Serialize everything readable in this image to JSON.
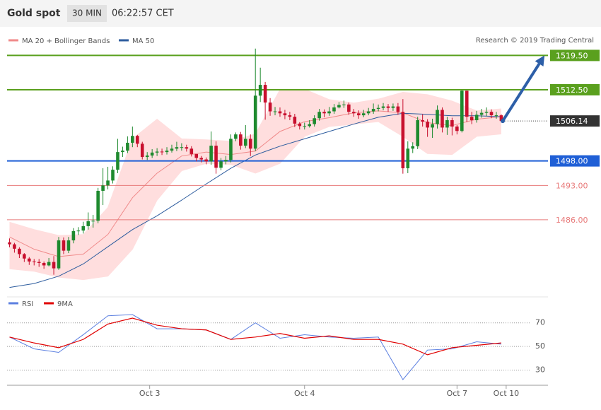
{
  "header": {
    "title": "Gold spot",
    "timeframe": "30 MIN",
    "time": "06:22:57 CET"
  },
  "chart_data": [
    {
      "type": "candlestick",
      "source": "Research © 2019 Trading Central",
      "up_color": "#1e8a2e",
      "down_color": "#c8102e",
      "open": [
        1481.4,
        1481.0,
        1480.1,
        1479.0,
        1478.1,
        1477.5,
        1477.4,
        1477.2,
        1476.7,
        1477.4,
        1476.1,
        1481.8,
        1479.7,
        1481.8,
        1483.7,
        1483.8,
        1484.7,
        1485.7,
        1485.8,
        1491.9,
        1493.0,
        1494.0,
        1496.2,
        1499.8,
        1500.1,
        1501.7,
        1503.1,
        1501.5,
        1498.8,
        1499.1,
        1499.7,
        1499.9,
        1499.8,
        1500.1,
        1500.5,
        1500.8,
        1500.8,
        1500.5,
        1499.4,
        1498.6,
        1498.3,
        1497.9,
        1501.1,
        1496.6,
        1497.9,
        1498.2,
        1502.5,
        1503.4,
        1501.1,
        1502.5,
        1500.5,
        1511.3,
        1513.5,
        1509.9,
        1508.1,
        1508.1,
        1507.7,
        1507.3,
        1507.0,
        1505.6,
        1505.1,
        1505.1,
        1505.5,
        1506.7,
        1508.0,
        1507.7,
        1508.1,
        1508.9,
        1509.4,
        1509.5,
        1508.0,
        1507.7,
        1507.3,
        1507.7,
        1508.1,
        1508.6,
        1508.8,
        1509.1,
        1508.8,
        1509.1,
        1508.0,
        1496.5,
        1500.5,
        1501.0,
        1506.3,
        1506.0,
        1504.8,
        1505.5,
        1508.4,
        1504.8,
        1506.3,
        1505.0,
        1504.1,
        1512.3,
        1507.0,
        1506.3,
        1507.4,
        1507.8,
        1508.0,
        1507.3,
        1507.3
      ],
      "high": [
        1482.2,
        1481.3,
        1480.4,
        1479.2,
        1478.4,
        1478.0,
        1478.0,
        1477.5,
        1478.2,
        1478.6,
        1482.5,
        1482.4,
        1482.5,
        1484.3,
        1484.5,
        1485.6,
        1487.5,
        1487.0,
        1492.5,
        1496.5,
        1496.8,
        1496.9,
        1502.5,
        1500.9,
        1503.0,
        1505.0,
        1503.3,
        1501.9,
        1499.8,
        1500.4,
        1500.6,
        1500.5,
        1500.8,
        1501.3,
        1501.9,
        1501.6,
        1501.3,
        1501.0,
        1499.3,
        1499.0,
        1498.7,
        1504.0,
        1502.0,
        1498.6,
        1499.0,
        1503.4,
        1503.8,
        1503.9,
        1505.3,
        1503.4,
        1520.9,
        1517.0,
        1514.1,
        1510.8,
        1509.0,
        1508.9,
        1508.4,
        1508.0,
        1507.6,
        1505.9,
        1505.8,
        1506.3,
        1507.3,
        1508.6,
        1508.5,
        1509.0,
        1509.6,
        1510.0,
        1510.3,
        1509.9,
        1508.6,
        1508.3,
        1508.4,
        1508.8,
        1509.7,
        1509.5,
        1509.8,
        1509.6,
        1509.7,
        1509.8,
        1510.6,
        1502.0,
        1501.8,
        1507.0,
        1507.5,
        1506.5,
        1506.6,
        1509.3,
        1508.9,
        1507.0,
        1506.8,
        1505.3,
        1512.4,
        1512.3,
        1508.0,
        1508.2,
        1508.6,
        1508.9,
        1508.5,
        1508.0,
        1507.5
      ],
      "low": [
        1480.4,
        1479.3,
        1478.2,
        1477.4,
        1476.8,
        1476.7,
        1476.4,
        1476.0,
        1476.5,
        1474.8,
        1475.8,
        1479.0,
        1479.2,
        1481.2,
        1482.9,
        1483.2,
        1484.0,
        1484.4,
        1485.3,
        1489.0,
        1492.2,
        1493.4,
        1495.5,
        1498.8,
        1499.6,
        1500.8,
        1500.8,
        1498.3,
        1498.2,
        1498.6,
        1499.0,
        1499.2,
        1499.3,
        1499.7,
        1500.0,
        1500.1,
        1499.9,
        1498.9,
        1497.9,
        1497.7,
        1497.3,
        1497.2,
        1495.4,
        1496.1,
        1497.3,
        1497.7,
        1502.0,
        1500.3,
        1500.6,
        1499.0,
        1500.0,
        1510.0,
        1506.4,
        1507.2,
        1507.3,
        1507.0,
        1506.5,
        1506.3,
        1504.9,
        1504.4,
        1504.4,
        1504.8,
        1505.0,
        1506.2,
        1506.9,
        1507.2,
        1507.6,
        1508.7,
        1508.8,
        1507.4,
        1507.0,
        1506.6,
        1506.9,
        1507.3,
        1507.6,
        1508.1,
        1508.3,
        1508.0,
        1508.2,
        1507.4,
        1495.4,
        1495.5,
        1499.6,
        1500.4,
        1505.0,
        1502.9,
        1502.7,
        1504.6,
        1503.8,
        1503.3,
        1503.2,
        1503.4,
        1503.8,
        1505.9,
        1505.5,
        1505.8,
        1506.8,
        1507.1,
        1506.7,
        1506.6,
        1505.9
      ],
      "close": [
        1481.0,
        1480.1,
        1479.0,
        1478.1,
        1477.5,
        1477.4,
        1477.2,
        1476.7,
        1477.4,
        1476.1,
        1481.8,
        1479.7,
        1481.8,
        1483.7,
        1483.8,
        1484.7,
        1485.7,
        1485.8,
        1491.9,
        1493.0,
        1494.0,
        1496.2,
        1499.8,
        1500.1,
        1501.7,
        1503.1,
        1501.5,
        1498.8,
        1499.1,
        1499.7,
        1499.9,
        1499.8,
        1500.1,
        1500.5,
        1500.8,
        1500.8,
        1500.5,
        1499.4,
        1498.6,
        1498.3,
        1497.9,
        1501.1,
        1496.6,
        1497.9,
        1498.2,
        1502.5,
        1503.4,
        1501.1,
        1502.5,
        1500.5,
        1511.3,
        1513.5,
        1509.9,
        1508.1,
        1508.1,
        1507.7,
        1507.3,
        1507.0,
        1505.6,
        1505.1,
        1505.1,
        1505.5,
        1506.7,
        1508.0,
        1507.7,
        1508.1,
        1508.9,
        1509.4,
        1509.5,
        1508.0,
        1507.7,
        1507.3,
        1507.7,
        1508.1,
        1508.6,
        1508.8,
        1509.1,
        1508.8,
        1509.1,
        1508.0,
        1496.5,
        1500.5,
        1501.0,
        1506.3,
        1506.0,
        1504.8,
        1505.5,
        1508.4,
        1504.8,
        1506.3,
        1505.0,
        1504.1,
        1512.3,
        1507.0,
        1506.3,
        1507.4,
        1507.8,
        1508.0,
        1507.3,
        1507.3,
        1506.14
      ],
      "indicator_x": [
        0,
        5,
        10,
        15,
        20,
        25,
        30,
        35,
        40,
        45,
        50,
        55,
        60,
        65,
        70,
        75,
        80,
        85,
        90,
        95,
        100
      ],
      "series": [
        {
          "name": "MA 20 + Bollinger Bands",
          "color": "#f08a8a",
          "values": [
            1482.5,
            1480.0,
            1478.5,
            1479.0,
            1483.0,
            1490.5,
            1495.5,
            1499.0,
            1499.8,
            1499.3,
            1500.0,
            1504.0,
            1506.0,
            1506.8,
            1507.8,
            1508.2,
            1507.8,
            1505.8,
            1505.2,
            1506.5,
            1507.0
          ]
        },
        {
          "name": "MA 50",
          "color": "#2d5c9e",
          "values": [
            1472.2,
            1473.0,
            1474.5,
            1477.0,
            1480.5,
            1484.0,
            1486.8,
            1490.0,
            1493.3,
            1496.5,
            1499.2,
            1501.0,
            1502.5,
            1504.0,
            1505.5,
            1506.9,
            1507.7,
            1507.5,
            1507.2,
            1507.2,
            1507.0
          ]
        }
      ],
      "bollinger_upper": [
        1485.5,
        1484.0,
        1482.8,
        1483.0,
        1488.5,
        1502.5,
        1506.5,
        1502.5,
        1502.3,
        1502.0,
        1503.5,
        1512.5,
        1512.6,
        1510.5,
        1509.8,
        1510.6,
        1512.0,
        1511.5,
        1510.2,
        1508.2,
        1508.6
      ],
      "bollinger_lower": [
        1476.0,
        1475.5,
        1474.3,
        1473.8,
        1474.5,
        1480.0,
        1490.0,
        1496.0,
        1497.5,
        1497.3,
        1495.5,
        1497.5,
        1503.0,
        1505.0,
        1505.5,
        1506.0,
        1503.0,
        1499.5,
        1499.3,
        1503.0,
        1503.5
      ],
      "band_color": "#ffdede",
      "levels": [
        {
          "value": 1519.5,
          "label": "1519.50",
          "color": "#5aa01e",
          "style": "solid",
          "box": true
        },
        {
          "value": 1512.5,
          "label": "1512.50",
          "color": "#5aa01e",
          "style": "solid",
          "box": true
        },
        {
          "value": 1506.14,
          "label": "1506.14",
          "color": "#333333",
          "style": "dotted",
          "box": true
        },
        {
          "value": 1498.0,
          "label": "1498.00",
          "color": "#1f5fd6",
          "style": "solid",
          "box": true
        },
        {
          "value": 1493.0,
          "label": "1493.00",
          "color": "#e87a7a",
          "style": "solid",
          "box": false
        },
        {
          "value": 1486.0,
          "label": "1486.00",
          "color": "#e87a7a",
          "style": "solid",
          "box": false
        }
      ],
      "arrow": {
        "from": [
          100.3,
          1506.14
        ],
        "to": [
          108.8,
          1519.5
        ],
        "color": "#2d5fa8"
      },
      "xlim": [
        -0.5,
        109.5
      ],
      "ylim": [
        1471,
        1521
      ]
    },
    {
      "type": "line",
      "x": [
        0,
        5,
        10,
        15,
        20,
        25,
        30,
        35,
        40,
        45,
        50,
        55,
        60,
        65,
        70,
        75,
        80,
        85,
        90,
        95,
        100
      ],
      "series": [
        {
          "name": "RSI",
          "color": "#5b7fe0",
          "values": [
            58,
            48,
            45,
            60,
            76,
            77,
            65,
            65,
            64,
            56,
            70,
            57,
            60,
            58,
            57,
            58,
            22,
            47,
            48,
            54,
            52
          ]
        },
        {
          "name": "9MA",
          "color": "#e00000",
          "values": [
            58,
            53,
            49,
            56,
            69,
            74,
            68,
            65,
            64,
            56,
            58,
            61,
            57,
            59,
            56,
            56,
            52,
            43,
            49,
            51,
            53
          ]
        }
      ],
      "xlim": [
        -0.5,
        109.5
      ],
      "ylim": [
        19,
        80
      ],
      "yticks": [
        30,
        50,
        70
      ],
      "xticks": [
        {
          "value": 28.5,
          "label": "Oct 3"
        },
        {
          "value": 60,
          "label": "Oct 4"
        },
        {
          "value": 91,
          "label": "Oct 7"
        },
        {
          "value": 101,
          "label": "Oct 10"
        }
      ]
    }
  ]
}
